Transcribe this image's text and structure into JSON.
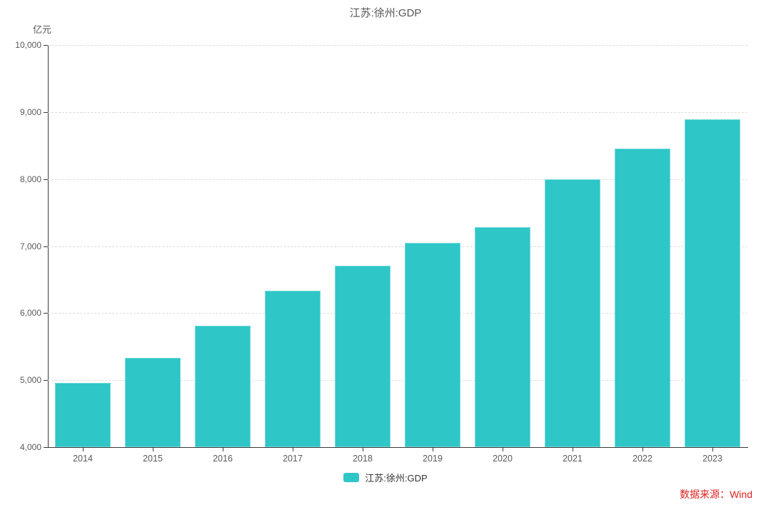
{
  "chart_data": {
    "type": "bar",
    "title": "江苏:徐州:GDP",
    "xlabel": "",
    "ylabel": "亿元",
    "categories": [
      "2014",
      "2015",
      "2016",
      "2017",
      "2018",
      "2019",
      "2020",
      "2021",
      "2022",
      "2023"
    ],
    "series": [
      {
        "name": "江苏:徐州:GDP",
        "color": "#2FC6C8",
        "values": [
          4960,
          5330,
          5810,
          6330,
          6710,
          7050,
          7280,
          8000,
          8460,
          8890
        ]
      }
    ],
    "ylim": [
      4000,
      10000
    ],
    "y_ticks": [
      4000,
      5000,
      6000,
      7000,
      8000,
      9000,
      10000
    ],
    "y_tick_labels": [
      "4,000",
      "5,000",
      "6,000",
      "7,000",
      "8,000",
      "9,000",
      "10,000"
    ],
    "grid": "horizontal-dashed",
    "legend": {
      "position": "bottom-center",
      "items": [
        {
          "label": "江苏:徐州:GDP",
          "color": "#2FC6C8"
        }
      ]
    }
  },
  "source_note": {
    "text": "数据来源：Wind",
    "color": "#E02222"
  },
  "colors": {
    "bar": "#2FC6C8",
    "axis_line": "#3a3a3a",
    "tick_label": "#5a5a5a",
    "gridline": "#dcdcdc",
    "title": "#565656",
    "background": "#ffffff"
  }
}
